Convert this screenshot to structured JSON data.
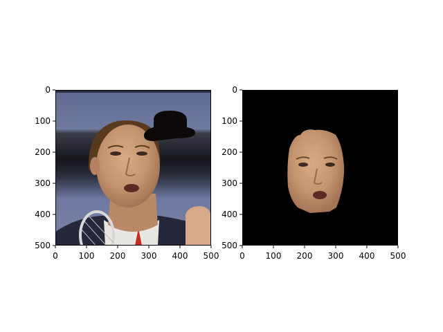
{
  "panels": [
    {
      "name": "face-image",
      "x_ticks": [
        "0",
        "100",
        "200",
        "300",
        "400",
        "500"
      ],
      "y_ticks": [
        "0",
        "100",
        "200",
        "300",
        "400",
        "500"
      ]
    },
    {
      "name": "face-mask",
      "x_ticks": [
        "0",
        "100",
        "200",
        "300",
        "400",
        "500"
      ],
      "y_ticks": [
        "0",
        "100",
        "200",
        "300",
        "400",
        "500"
      ]
    }
  ],
  "colors": {
    "background": "#000000",
    "skin": "#c4956f",
    "hair": "#5a3a1e",
    "stadium_blue": "#6f7aa0",
    "stadium_dark": "#1c1d24",
    "shirt": "#24283a"
  }
}
